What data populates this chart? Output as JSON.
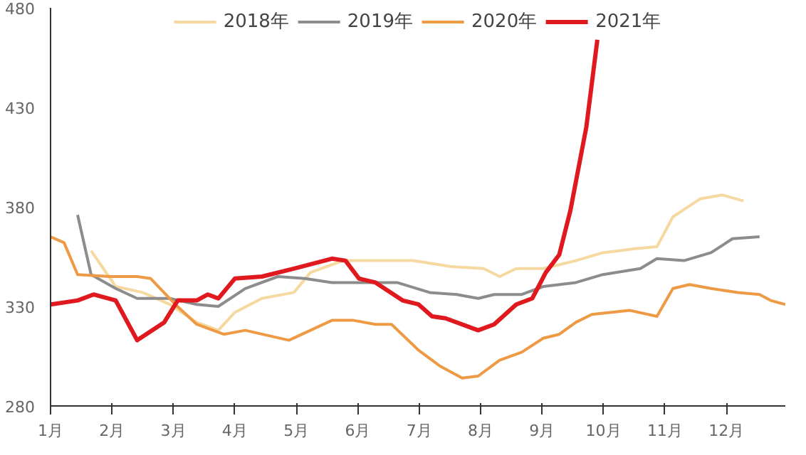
{
  "chart_data": {
    "type": "line",
    "xlim": [
      1,
      12.96
    ],
    "ylim": [
      280,
      480
    ],
    "yticks": [
      280,
      330,
      380,
      430,
      480
    ],
    "xticks": [
      {
        "value": 1,
        "label": "1月"
      },
      {
        "value": 2,
        "label": "2月"
      },
      {
        "value": 3,
        "label": "3月"
      },
      {
        "value": 4,
        "label": "4月"
      },
      {
        "value": 5,
        "label": "5月"
      },
      {
        "value": 6,
        "label": "6月"
      },
      {
        "value": 7,
        "label": "7月"
      },
      {
        "value": 8,
        "label": "8月"
      },
      {
        "value": 9,
        "label": "9月"
      },
      {
        "value": 10,
        "label": "10月"
      },
      {
        "value": 11,
        "label": "11月"
      },
      {
        "value": 12,
        "label": "12月"
      }
    ],
    "grid": false,
    "legend": "top",
    "marker": "none",
    "line_style": "solid",
    "series": [
      {
        "name": "2018年",
        "color": "#f5d9a0",
        "x": [
          1.66,
          2.06,
          2.5,
          2.94,
          3.38,
          3.73,
          4.0,
          4.44,
          4.96,
          5.23,
          5.76,
          6.29,
          6.9,
          7.52,
          8.05,
          8.31,
          8.58,
          9.02,
          9.55,
          9.99,
          10.52,
          10.87,
          11.13,
          11.57,
          11.93,
          12.28
        ],
        "values": [
          358,
          340,
          337,
          331,
          322,
          318,
          327,
          334,
          337,
          347,
          353,
          353,
          353,
          350,
          349,
          345,
          349,
          349,
          353,
          357,
          359,
          360,
          375,
          384,
          386,
          383
        ]
      },
      {
        "name": "2019年",
        "color": "#8c8c8c",
        "x": [
          1.44,
          1.66,
          2.06,
          2.41,
          2.94,
          3.38,
          3.73,
          4.17,
          4.7,
          5.14,
          5.58,
          6.11,
          6.64,
          7.17,
          7.61,
          7.96,
          8.22,
          8.67,
          9.02,
          9.55,
          9.99,
          10.6,
          10.87,
          11.31,
          11.75,
          12.1,
          12.54
        ],
        "values": [
          376,
          346,
          339,
          334,
          334,
          331,
          330,
          339,
          345,
          344,
          342,
          342,
          342,
          337,
          336,
          334,
          336,
          336,
          340,
          342,
          346,
          349,
          354,
          353,
          357,
          364,
          365
        ]
      },
      {
        "name": "2020年",
        "color": "#ee9a44",
        "x": [
          1.0,
          1.22,
          1.44,
          1.97,
          2.41,
          2.63,
          3.03,
          3.38,
          3.82,
          4.17,
          4.88,
          5.58,
          5.93,
          6.29,
          6.55,
          6.99,
          7.34,
          7.7,
          7.96,
          8.31,
          8.67,
          9.02,
          9.28,
          9.55,
          9.81,
          10.43,
          10.87,
          11.13,
          11.4,
          11.75,
          12.19,
          12.54,
          12.72,
          12.96
        ],
        "values": [
          365,
          362,
          346,
          345,
          345,
          344,
          331,
          321,
          316,
          318,
          313,
          323,
          323,
          321,
          321,
          308,
          300,
          294,
          295,
          303,
          307,
          314,
          316,
          322,
          326,
          328,
          325,
          339,
          341,
          339,
          337,
          336,
          333,
          331
        ]
      },
      {
        "name": "2021年",
        "color": "#e0191f",
        "x": [
          1.0,
          1.44,
          1.7,
          2.06,
          2.41,
          2.85,
          3.07,
          3.38,
          3.56,
          3.73,
          4.0,
          4.44,
          4.96,
          5.58,
          5.8,
          6.02,
          6.29,
          6.73,
          6.99,
          7.21,
          7.43,
          7.96,
          8.22,
          8.58,
          8.84,
          9.06,
          9.28,
          9.46,
          9.72,
          9.9
        ],
        "values": [
          331,
          333,
          336,
          333,
          313,
          322,
          333,
          333,
          336,
          334,
          344,
          345,
          349,
          354,
          353,
          344,
          342,
          333,
          331,
          325,
          324,
          318,
          321,
          331,
          334,
          347,
          356,
          378,
          420,
          464
        ]
      }
    ]
  }
}
